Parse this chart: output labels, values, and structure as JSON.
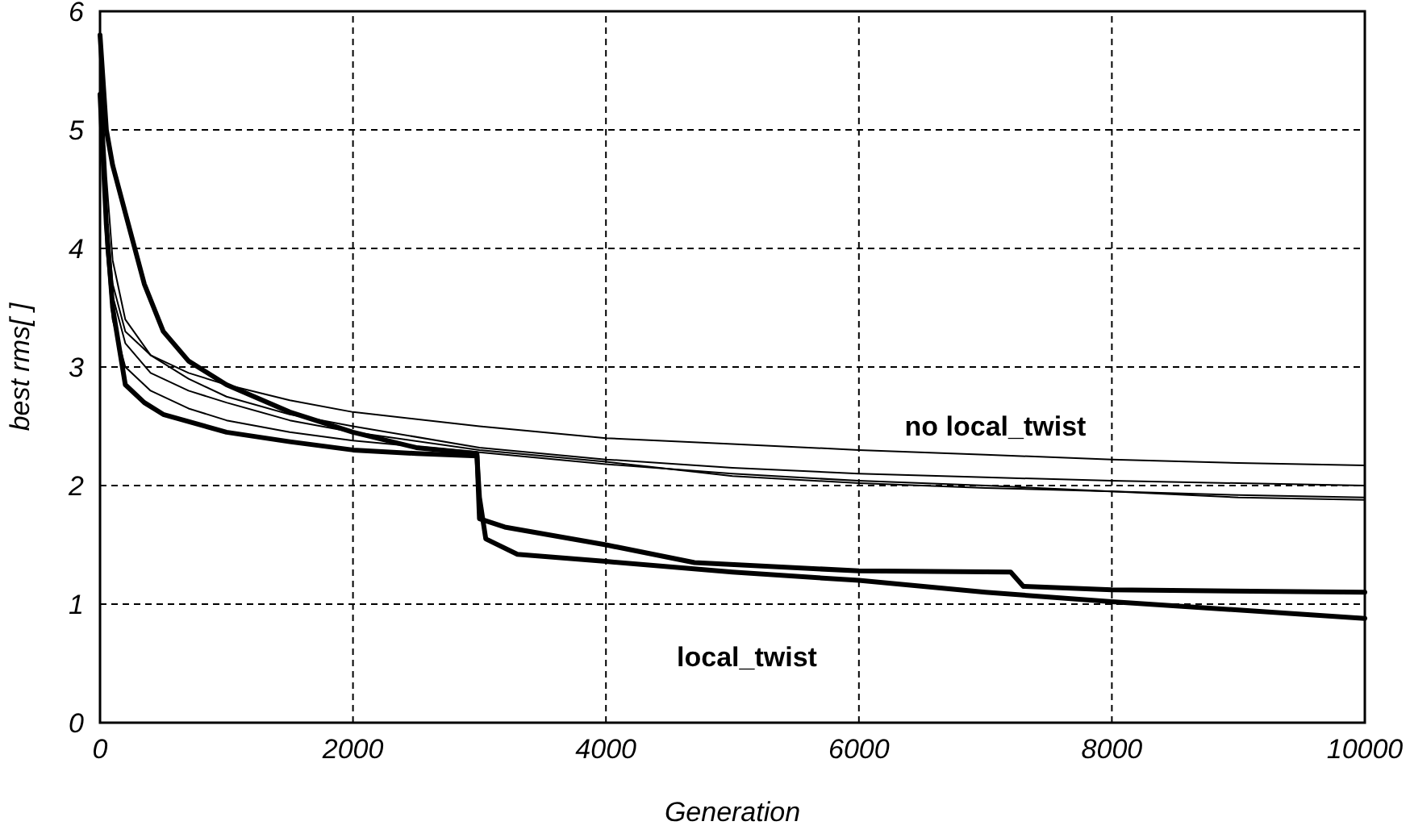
{
  "chart_data": {
    "type": "line",
    "xlabel": "Generation",
    "ylabel": "best rms[ ]",
    "xlim": [
      0,
      10000
    ],
    "ylim": [
      0,
      6
    ],
    "xticks": [
      0,
      2000,
      4000,
      6000,
      8000,
      10000
    ],
    "yticks": [
      0,
      1,
      2,
      3,
      4,
      5,
      6
    ],
    "grid": true,
    "line_style": "solid",
    "marker": "none",
    "series": [
      {
        "color": "#000000",
        "x": [
          0,
          50,
          100,
          200,
          400,
          700,
          1000,
          1500,
          2000,
          3000,
          4000,
          5000,
          6000,
          7000,
          8000,
          9000,
          10000
        ],
        "values": [
          5.5,
          4.3,
          3.7,
          3.3,
          3.1,
          2.95,
          2.85,
          2.72,
          2.62,
          2.5,
          2.4,
          2.35,
          2.3,
          2.26,
          2.22,
          2.19,
          2.17
        ]
      },
      {
        "color": "#000000",
        "x": [
          0,
          50,
          100,
          200,
          400,
          700,
          1000,
          1500,
          2000,
          3000,
          4000,
          5000,
          6000,
          7000,
          8000,
          9000,
          10000
        ],
        "values": [
          5.6,
          4.6,
          3.9,
          3.4,
          3.1,
          2.9,
          2.75,
          2.6,
          2.5,
          2.32,
          2.22,
          2.15,
          2.1,
          2.07,
          2.04,
          2.02,
          2.0
        ]
      },
      {
        "color": "#000000",
        "x": [
          0,
          50,
          100,
          200,
          400,
          700,
          1000,
          1500,
          2000,
          3000,
          4000,
          5000,
          6000,
          7000,
          8000,
          9000,
          10000
        ],
        "values": [
          5.4,
          4.2,
          3.6,
          3.2,
          2.95,
          2.8,
          2.7,
          2.55,
          2.45,
          2.3,
          2.2,
          2.08,
          2.02,
          1.98,
          1.95,
          1.92,
          1.9
        ]
      },
      {
        "color": "#000000",
        "x": [
          0,
          50,
          100,
          200,
          400,
          700,
          1000,
          1500,
          2000,
          3000,
          4000,
          5000,
          6000,
          7000,
          8000,
          9000,
          10000
        ],
        "values": [
          5.2,
          4.0,
          3.4,
          3.0,
          2.8,
          2.65,
          2.55,
          2.45,
          2.38,
          2.28,
          2.18,
          2.1,
          2.04,
          2.0,
          1.95,
          1.9,
          1.88
        ]
      },
      {
        "color": "#000000",
        "x": [
          0,
          50,
          100,
          200,
          350,
          500,
          700,
          1000,
          1500,
          2000,
          2500,
          2980,
          3000,
          3200,
          4000,
          4700,
          6000,
          7200,
          7300,
          8000,
          10000
        ],
        "values": [
          5.8,
          5.0,
          4.7,
          4.3,
          3.7,
          3.3,
          3.05,
          2.85,
          2.62,
          2.45,
          2.32,
          2.27,
          1.72,
          1.65,
          1.5,
          1.35,
          1.28,
          1.27,
          1.15,
          1.12,
          1.1
        ]
      },
      {
        "color": "#000000",
        "x": [
          0,
          50,
          100,
          200,
          350,
          500,
          1000,
          1500,
          2000,
          2500,
          2980,
          3000,
          3050,
          3300,
          4000,
          5000,
          6000,
          7000,
          8000,
          9000,
          10000
        ],
        "values": [
          5.3,
          4.2,
          3.5,
          2.85,
          2.7,
          2.6,
          2.45,
          2.37,
          2.3,
          2.27,
          2.25,
          1.9,
          1.55,
          1.42,
          1.36,
          1.27,
          1.2,
          1.1,
          1.02,
          0.95,
          0.88
        ]
      }
    ],
    "annotations": [
      "no local_twist",
      "local_twist"
    ]
  }
}
